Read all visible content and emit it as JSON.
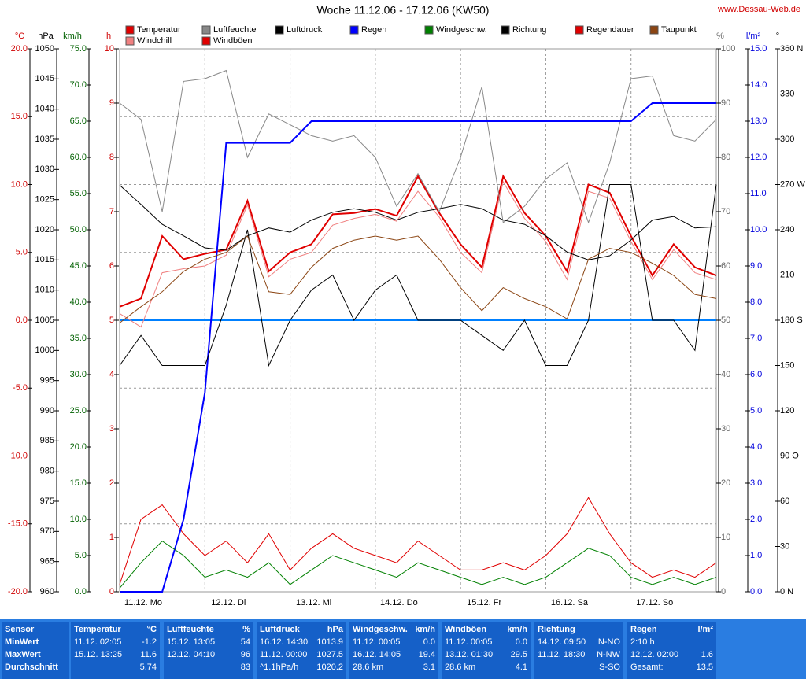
{
  "chart_data": {
    "type": "line",
    "title": "Woche 11.12.06 - 17.12.06 (KW50)",
    "source": "www.Dessau-Web.de",
    "x_labels": [
      "11.12. Mo",
      "12.12. Di",
      "13.12. Mi",
      "14.12. Do",
      "15.12. Fr",
      "16.12. Sa",
      "17.12. So"
    ],
    "grid": "°C",
    "axes": [
      {
        "label": "°C",
        "color": "#d00000",
        "side": "left",
        "lim": [
          -20,
          20
        ],
        "ticks": [
          {
            "value": -20,
            "label": "-20.0"
          },
          {
            "value": -15,
            "label": "-15.0"
          },
          {
            "value": -10,
            "label": "-10.0"
          },
          {
            "value": -5,
            "label": "-5.0"
          },
          {
            "value": 0,
            "label": "0.0"
          },
          {
            "value": 5,
            "label": "5.0"
          },
          {
            "value": 10,
            "label": "10.0"
          },
          {
            "value": 15,
            "label": "15.0"
          },
          {
            "value": 20,
            "label": "20.0"
          }
        ]
      },
      {
        "label": "hPa",
        "color": "#000000",
        "side": "left",
        "lim": [
          960,
          1050
        ],
        "ticks": [
          960,
          965,
          970,
          975,
          980,
          985,
          990,
          995,
          1000,
          1005,
          1010,
          1015,
          1020,
          1025,
          1030,
          1035,
          1040,
          1045,
          1050
        ]
      },
      {
        "label": "km/h",
        "color": "#006000",
        "side": "left",
        "lim": [
          0,
          75
        ],
        "ticks": [
          {
            "value": 0,
            "label": "0.0"
          },
          {
            "value": 5,
            "label": "5.0"
          },
          {
            "value": 10,
            "label": "10.0"
          },
          {
            "value": 15,
            "label": "15.0"
          },
          {
            "value": 20,
            "label": "20.0"
          },
          {
            "value": 25,
            "label": "25.0"
          },
          {
            "value": 30,
            "label": "30.0"
          },
          {
            "value": 35,
            "label": "35.0"
          },
          {
            "value": 40,
            "label": "40.0"
          },
          {
            "value": 45,
            "label": "45.0"
          },
          {
            "value": 50,
            "label": "50.0"
          },
          {
            "value": 55,
            "label": "55.0"
          },
          {
            "value": 60,
            "label": "60.0"
          },
          {
            "value": 65,
            "label": "65.0"
          },
          {
            "value": 70,
            "label": "70.0"
          },
          {
            "value": 75,
            "label": "75.0"
          }
        ]
      },
      {
        "label": "h",
        "color": "#d00000",
        "side": "left",
        "lim": [
          0,
          10
        ],
        "ticks": [
          0,
          1,
          2,
          3,
          4,
          5,
          6,
          7,
          8,
          9,
          10
        ]
      },
      {
        "label": "%",
        "color": "#666666",
        "side": "right",
        "lim": [
          0,
          100
        ],
        "ticks": [
          0,
          10,
          20,
          30,
          40,
          50,
          60,
          70,
          80,
          90,
          100
        ]
      },
      {
        "label": "l/m²",
        "color": "#0000dd",
        "side": "right",
        "lim": [
          0,
          15
        ],
        "ticks": [
          {
            "value": 0,
            "label": "0.0"
          },
          {
            "value": 1,
            "label": "1.0"
          },
          {
            "value": 2,
            "label": "2.0"
          },
          {
            "value": 3,
            "label": "3.0"
          },
          {
            "value": 4,
            "label": "4.0"
          },
          {
            "value": 5,
            "label": "5.0"
          },
          {
            "value": 6,
            "label": "6.0"
          },
          {
            "value": 7,
            "label": "7.0"
          },
          {
            "value": 8,
            "label": "8.0"
          },
          {
            "value": 9,
            "label": "9.0"
          },
          {
            "value": 10,
            "label": "10.0"
          },
          {
            "value": 11,
            "label": "11.0"
          },
          {
            "value": 12,
            "label": "12.0"
          },
          {
            "value": 13,
            "label": "13.0"
          },
          {
            "value": 14,
            "label": "14.0"
          },
          {
            "value": 15,
            "label": "15.0"
          }
        ]
      },
      {
        "label": "°",
        "color": "#000000",
        "side": "right",
        "lim": [
          0,
          360
        ],
        "ticks": [
          {
            "value": 0,
            "label": "0 N"
          },
          30,
          60,
          {
            "value": 90,
            "label": "90 O"
          },
          120,
          150,
          {
            "value": 180,
            "label": "180 S"
          },
          210,
          240,
          {
            "value": 270,
            "label": "270 W"
          },
          300,
          330,
          {
            "value": 360,
            "label": "360 N"
          }
        ]
      }
    ],
    "series": [
      {
        "name": "Temperatur",
        "color": "#e00000",
        "axis": "°C",
        "values": [
          1.0,
          1.6,
          6.2,
          4.5,
          4.9,
          5.2,
          8.8,
          3.6,
          5.0,
          5.6,
          7.8,
          7.9,
          8.2,
          7.7,
          10.6,
          7.9,
          5.6,
          3.9,
          10.6,
          7.9,
          6.2,
          3.6,
          10.0,
          9.4,
          6.2,
          3.3,
          5.6,
          3.9,
          3.3
        ]
      },
      {
        "name": "Windchill",
        "color": "#f08080",
        "axis": "°C",
        "values": [
          0.5,
          -0.5,
          3.5,
          3.8,
          4.0,
          4.8,
          8.5,
          3.2,
          4.5,
          5.0,
          7.0,
          7.5,
          7.8,
          7.3,
          9.5,
          7.6,
          5.0,
          3.5,
          10.2,
          7.5,
          5.8,
          3.0,
          9.5,
          9.0,
          5.8,
          3.0,
          5.2,
          3.5,
          3.0
        ]
      },
      {
        "name": "Luftfeuchte",
        "color": "#888888",
        "axis": "%",
        "values": [
          90,
          87,
          70,
          94,
          94.5,
          96,
          80,
          88,
          86,
          84,
          83,
          84,
          80,
          71,
          77,
          70,
          80,
          93,
          68,
          71,
          76,
          79,
          68,
          79,
          94.5,
          95,
          84,
          83,
          87
        ]
      },
      {
        "name": "Windböen",
        "color": "#e00000",
        "axis": "km/h",
        "values": [
          1,
          10,
          12,
          8,
          5,
          7,
          4,
          8,
          3,
          6,
          8,
          6,
          5,
          4,
          7,
          5,
          3,
          3,
          4,
          3,
          5,
          8,
          13,
          8,
          4,
          2,
          3,
          2,
          4
        ]
      },
      {
        "name": "Luftdruck",
        "color": "#000000",
        "axis": "hPa",
        "values": [
          1027.4,
          1024.2,
          1020.9,
          1019,
          1017,
          1016.6,
          1019,
          1020.3,
          1019.6,
          1021.6,
          1022.9,
          1023.5,
          1022.9,
          1021.6,
          1022.9,
          1023.5,
          1024.2,
          1023.5,
          1021.6,
          1020.9,
          1019,
          1016.3,
          1015,
          1015.7,
          1018.3,
          1021.6,
          1022.2,
          1020.3,
          1020.5
        ]
      },
      {
        "name": "Regen",
        "color": "#0000ff",
        "axis": "l/m²",
        "values": [
          0,
          0,
          0,
          2.0,
          5.5,
          12.4,
          12.4,
          12.4,
          12.4,
          13.0,
          13.0,
          13.0,
          13.0,
          13.0,
          13.0,
          13.0,
          13.0,
          13.0,
          13.0,
          13.0,
          13.0,
          13.0,
          13.0,
          13.0,
          13.0,
          13.5,
          13.5,
          13.5,
          13.5
        ]
      },
      {
        "name": "Windgeschw.",
        "color": "#008000",
        "axis": "km/h",
        "values": [
          0.5,
          4,
          7,
          5,
          2,
          3,
          2,
          4,
          1,
          3,
          5,
          4,
          3,
          2,
          4,
          3,
          2,
          1,
          2,
          1,
          2,
          4,
          6,
          5,
          2,
          1,
          2,
          1,
          2
        ]
      },
      {
        "name": "Richtung",
        "color": "#000000",
        "axis": "°",
        "values": [
          150,
          170,
          150,
          150,
          150,
          190,
          240,
          150,
          180,
          200,
          210,
          180,
          200,
          210,
          180,
          180,
          180,
          170,
          160,
          180,
          150,
          150,
          180,
          270,
          270,
          180,
          180,
          160,
          270
        ]
      },
      {
        "name": "Regendauer",
        "color": "#e00000",
        "axis": "h",
        "values": [
          null,
          null,
          null,
          null,
          null,
          null,
          null,
          null,
          null,
          null,
          null,
          null,
          null,
          null,
          null,
          null,
          null,
          null,
          null,
          null,
          null,
          null,
          null,
          null,
          null,
          null,
          null,
          null,
          null
        ]
      },
      {
        "name": "Taupunkt",
        "color": "#8b4513",
        "axis": "°C",
        "values": [
          -0.2,
          1.0,
          2.1,
          3.6,
          4.5,
          5.0,
          6.2,
          2.1,
          1.9,
          3.9,
          5.3,
          5.9,
          6.2,
          5.9,
          6.2,
          4.5,
          2.4,
          0.7,
          2.4,
          1.6,
          1.0,
          0.1,
          4.5,
          5.3,
          5.0,
          4.2,
          3.3,
          1.9,
          1.6
        ]
      }
    ]
  },
  "table": {
    "panels": [
      {
        "title": "Sensor",
        "rows": [
          {
            "l": "MinWert"
          },
          {
            "l": "MaxWert"
          },
          {
            "l": "Durchschnitt"
          }
        ]
      },
      {
        "title": "Temperatur",
        "unit": "°C",
        "rows": [
          {
            "l": "11.12. 02:05",
            "r": "-1.2"
          },
          {
            "l": "15.12. 13:25",
            "r": "11.6"
          },
          {
            "r": "5.74"
          }
        ]
      },
      {
        "title": "Luftfeuchte",
        "unit": "%",
        "rows": [
          {
            "l": "15.12. 13:05",
            "r": "54"
          },
          {
            "l": "12.12. 04:10",
            "r": "96"
          },
          {
            "r": "83"
          }
        ]
      },
      {
        "title": "Luftdruck",
        "unit": "hPa",
        "rows": [
          {
            "l": "16.12. 14:30",
            "r": "1013.9"
          },
          {
            "l": "11.12. 00:00",
            "r": "1027.5"
          },
          {
            "l": "^1.1hPa/h",
            "r": "1020.2"
          }
        ]
      },
      {
        "title": "Windgeschw.",
        "unit": "km/h",
        "rows": [
          {
            "l": "11.12. 00:05",
            "r": "0.0"
          },
          {
            "l": "16.12. 14:05",
            "r": "19.4"
          },
          {
            "l": "28.6 km",
            "r": "3.1"
          }
        ]
      },
      {
        "title": "Windböen",
        "unit": "km/h",
        "rows": [
          {
            "l": "11.12. 00:05",
            "r": "0.0"
          },
          {
            "l": "13.12. 01:30",
            "r": "29.5"
          },
          {
            "l": "28.6 km",
            "r": "4.1"
          }
        ]
      },
      {
        "title": "Richtung",
        "rows": [
          {
            "l": "14.12. 09:50",
            "r": "N-NO"
          },
          {
            "l": "11.12. 18:30",
            "r": "N-NW"
          },
          {
            "r": "S-SO"
          }
        ]
      },
      {
        "title": "Regen",
        "unit": "l/m²",
        "rows": [
          {
            "l": "2:10 h"
          },
          {
            "l": "12.12. 02:00",
            "r": "1.6"
          },
          {
            "l": "Gesamt:",
            "r": "13.5"
          }
        ]
      }
    ]
  }
}
